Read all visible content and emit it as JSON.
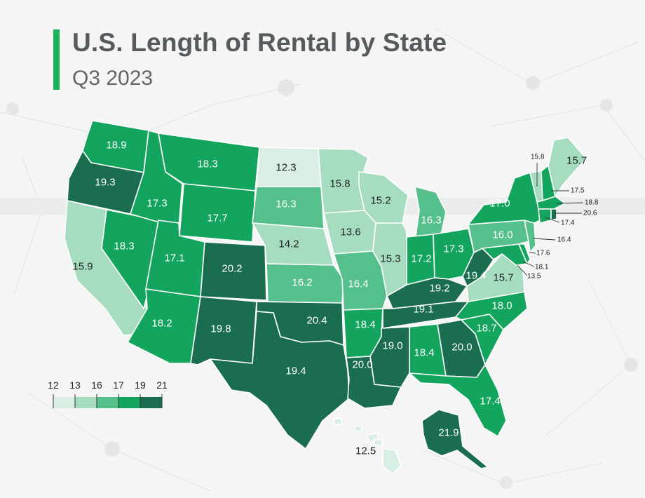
{
  "title": "U.S. Length of Rental by State",
  "subtitle": "Q3 2023",
  "legend": {
    "thresholds": [
      "12",
      "13",
      "16",
      "17",
      "19",
      "21"
    ],
    "colors": [
      "#d9efe3",
      "#a6dcbf",
      "#56c08d",
      "#13a55e",
      "#1b6d4f"
    ]
  },
  "text_colors": {
    "light": "#ffffff",
    "dark": "#1e2426"
  },
  "chart_data": {
    "type": "choropleth",
    "title": "U.S. Length of Rental by State",
    "subtitle": "Q3 2023",
    "states": [
      {
        "id": "WA",
        "value": "18.9"
      },
      {
        "id": "OR",
        "value": "19.3"
      },
      {
        "id": "CA",
        "value": "15.9"
      },
      {
        "id": "NV",
        "value": "18.3"
      },
      {
        "id": "ID",
        "value": "17.3"
      },
      {
        "id": "MT",
        "value": "18.3"
      },
      {
        "id": "WY",
        "value": "17.7"
      },
      {
        "id": "UT",
        "value": "17.1"
      },
      {
        "id": "AZ",
        "value": "18.2"
      },
      {
        "id": "CO",
        "value": "20.2"
      },
      {
        "id": "NM",
        "value": "19.8"
      },
      {
        "id": "ND",
        "value": "12.3"
      },
      {
        "id": "SD",
        "value": "16.3"
      },
      {
        "id": "NE",
        "value": "14.2"
      },
      {
        "id": "KS",
        "value": "16.2"
      },
      {
        "id": "OK",
        "value": "20.4"
      },
      {
        "id": "TX",
        "value": "19.4"
      },
      {
        "id": "MN",
        "value": "15.8"
      },
      {
        "id": "IA",
        "value": "13.6"
      },
      {
        "id": "MO",
        "value": "16.4"
      },
      {
        "id": "AR",
        "value": "18.4"
      },
      {
        "id": "LA",
        "value": "20.0"
      },
      {
        "id": "WI",
        "value": "15.2"
      },
      {
        "id": "IL",
        "value": "15.3"
      },
      {
        "id": "MI",
        "value": "16.3"
      },
      {
        "id": "IN",
        "value": "17.2"
      },
      {
        "id": "OH",
        "value": "17.3"
      },
      {
        "id": "KY",
        "value": "19.2"
      },
      {
        "id": "TN",
        "value": "19.1"
      },
      {
        "id": "MS",
        "value": "19.0"
      },
      {
        "id": "AL",
        "value": "18.4"
      },
      {
        "id": "GA",
        "value": "20.0"
      },
      {
        "id": "FL",
        "value": "17.4"
      },
      {
        "id": "SC",
        "value": "18.7"
      },
      {
        "id": "NC",
        "value": "18.0"
      },
      {
        "id": "VA",
        "value": "15.7"
      },
      {
        "id": "WV",
        "value": "19.4"
      },
      {
        "id": "PA",
        "value": "16.0"
      },
      {
        "id": "NY",
        "value": "17.0"
      },
      {
        "id": "VT",
        "value": "15.8"
      },
      {
        "id": "NH",
        "value": "17.5"
      },
      {
        "id": "ME",
        "value": "15.7"
      },
      {
        "id": "MA",
        "value": "18.8"
      },
      {
        "id": "RI",
        "value": "20.6"
      },
      {
        "id": "CT",
        "value": "17.4"
      },
      {
        "id": "NJ",
        "value": "16.4"
      },
      {
        "id": "DE",
        "value": "17.6"
      },
      {
        "id": "MD",
        "value": "18.1"
      },
      {
        "id": "DC",
        "value": "13.5"
      },
      {
        "id": "AK",
        "value": "21.9"
      },
      {
        "id": "HI",
        "value": "12.5"
      }
    ]
  }
}
